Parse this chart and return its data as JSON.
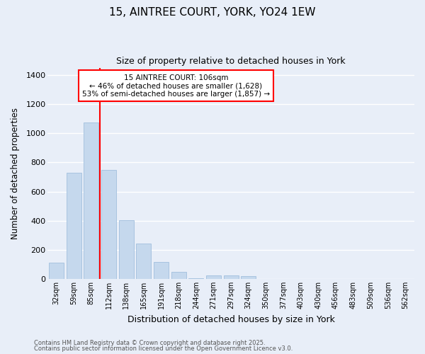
{
  "title": "15, AINTREE COURT, YORK, YO24 1EW",
  "subtitle": "Size of property relative to detached houses in York",
  "xlabel": "Distribution of detached houses by size in York",
  "ylabel": "Number of detached properties",
  "categories": [
    "32sqm",
    "59sqm",
    "85sqm",
    "112sqm",
    "138sqm",
    "165sqm",
    "191sqm",
    "218sqm",
    "244sqm",
    "271sqm",
    "297sqm",
    "324sqm",
    "350sqm",
    "377sqm",
    "403sqm",
    "430sqm",
    "456sqm",
    "483sqm",
    "509sqm",
    "536sqm",
    "562sqm"
  ],
  "values": [
    110,
    730,
    1075,
    750,
    405,
    245,
    115,
    50,
    5,
    25,
    25,
    20,
    0,
    0,
    0,
    0,
    0,
    0,
    0,
    0,
    0
  ],
  "bar_color": "#c5d8ed",
  "bar_edge_color": "#a8c4e0",
  "vline_x": 2.5,
  "vline_color": "red",
  "annotation_text": "15 AINTREE COURT: 106sqm\n← 46% of detached houses are smaller (1,628)\n53% of semi-detached houses are larger (1,857) →",
  "annotation_box_color": "white",
  "annotation_box_edge_color": "red",
  "ylim": [
    0,
    1450
  ],
  "yticks": [
    0,
    200,
    400,
    600,
    800,
    1000,
    1200,
    1400
  ],
  "background_color": "#e8eef8",
  "grid_color": "white",
  "footer_line1": "Contains HM Land Registry data © Crown copyright and database right 2025.",
  "footer_line2": "Contains public sector information licensed under the Open Government Licence v3.0."
}
